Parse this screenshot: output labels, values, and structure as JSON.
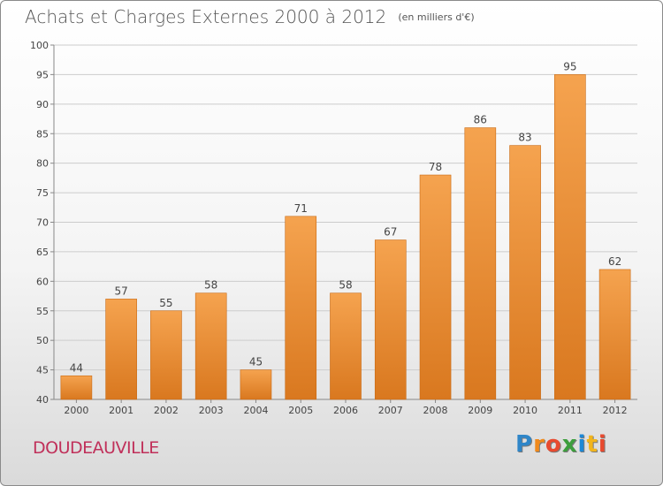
{
  "title": {
    "main": "Achats et Charges Externes 2000 à 2012",
    "unit": "(en milliers d'€)"
  },
  "commune": "DOUDEAUVILLE",
  "logo": {
    "letters": [
      "P",
      "r",
      "o",
      "x",
      "i",
      "t",
      "i"
    ]
  },
  "colors": {
    "bar_top": "#f5a34f",
    "bar_bottom": "#d9781f",
    "commune": "#c0305a",
    "grid": "#cccccc"
  },
  "chart_data": {
    "type": "bar",
    "title": "Achats et Charges Externes 2000 à 2012",
    "subtitle": "(en milliers d'€)",
    "xlabel": "",
    "ylabel": "",
    "categories": [
      "2000",
      "2001",
      "2002",
      "2003",
      "2004",
      "2005",
      "2006",
      "2007",
      "2008",
      "2009",
      "2010",
      "2011",
      "2012"
    ],
    "values": [
      44,
      57,
      55,
      58,
      45,
      71,
      58,
      67,
      78,
      86,
      83,
      95,
      62
    ],
    "ylim": [
      40,
      100
    ],
    "yticks": [
      40,
      45,
      50,
      55,
      60,
      65,
      70,
      75,
      80,
      85,
      90,
      95,
      100
    ],
    "grid": true,
    "data_labels": true
  }
}
